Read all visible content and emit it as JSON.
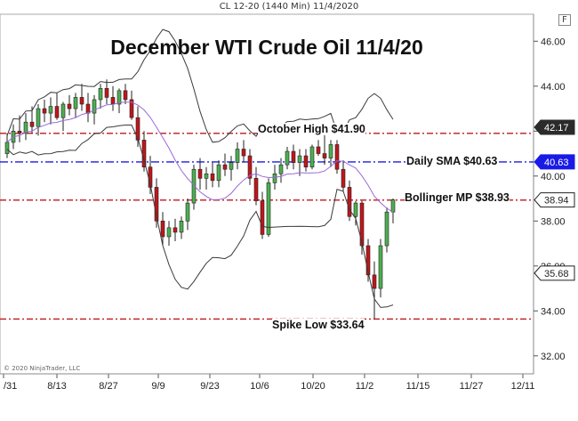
{
  "header": {
    "instrument": "CL 12-20 (1440 Min)  11/4/2020",
    "f_label": "F"
  },
  "copyright": "© 2020 NinjaTrader, LLC",
  "colors": {
    "up": "#4caf50",
    "down": "#c0161b",
    "hline_red": "#c0161b",
    "hline_blue": "#1a1ae6",
    "band": "#3a3a3a",
    "sma": "#9a6ad6"
  },
  "chart_data": {
    "type": "candlestick",
    "title": "December WTI Crude Oil 11/4/20",
    "x_ticks": [
      "/31",
      "8/13",
      "8/27",
      "9/9",
      "9/23",
      "10/6",
      "10/20",
      "11/2",
      "11/15",
      "11/27",
      "12/11"
    ],
    "y_ticks": [
      "46.00",
      "44.00",
      "42.00",
      "40.00",
      "38.00",
      "36.00",
      "34.00",
      "32.00"
    ],
    "ylim": [
      31.2,
      47.2
    ],
    "grid": false,
    "levels": [
      {
        "label": "October High $41.90",
        "value": 41.9,
        "color": "red"
      },
      {
        "label": "Daily SMA $40.63",
        "value": 40.63,
        "color": "blue"
      },
      {
        "label": "Bollinger MP $38.93",
        "value": 38.93,
        "color": "red"
      },
      {
        "label": "Spike Low $33.64",
        "value": 33.64,
        "color": "red"
      }
    ],
    "price_labels": [
      {
        "text": "42.17",
        "value": 42.17,
        "style": "dark"
      },
      {
        "text": "40.63",
        "value": 40.63,
        "style": "blue"
      },
      {
        "text": "38.94",
        "value": 38.94,
        "style": "outline"
      },
      {
        "text": "35.68",
        "value": 35.68,
        "style": "outline"
      }
    ],
    "candles": [
      [
        41.0,
        41.9,
        40.8,
        41.5
      ],
      [
        41.5,
        42.3,
        41.2,
        42.0
      ],
      [
        42.0,
        42.7,
        41.5,
        41.9
      ],
      [
        41.9,
        42.8,
        41.6,
        42.4
      ],
      [
        42.4,
        43.1,
        41.9,
        42.2
      ],
      [
        42.2,
        43.2,
        41.8,
        43.0
      ],
      [
        43.0,
        43.4,
        42.4,
        42.8
      ],
      [
        42.8,
        43.5,
        42.3,
        43.1
      ],
      [
        43.1,
        43.7,
        42.5,
        42.6
      ],
      [
        42.6,
        43.3,
        42.0,
        43.2
      ],
      [
        43.2,
        43.6,
        42.7,
        43.0
      ],
      [
        43.0,
        43.7,
        42.6,
        43.5
      ],
      [
        43.5,
        44.1,
        42.9,
        43.2
      ],
      [
        43.2,
        43.7,
        42.4,
        42.8
      ],
      [
        42.8,
        43.6,
        42.3,
        43.4
      ],
      [
        43.4,
        44.1,
        43.0,
        43.9
      ],
      [
        43.9,
        44.3,
        43.2,
        43.5
      ],
      [
        43.5,
        44.0,
        42.9,
        43.2
      ],
      [
        43.2,
        43.9,
        42.8,
        43.8
      ],
      [
        43.8,
        44.1,
        43.2,
        43.4
      ],
      [
        43.4,
        43.8,
        42.5,
        42.6
      ],
      [
        42.6,
        43.1,
        41.3,
        41.6
      ],
      [
        41.6,
        42.0,
        40.2,
        40.4
      ],
      [
        40.4,
        40.9,
        39.2,
        39.5
      ],
      [
        39.5,
        39.9,
        37.7,
        38.0
      ],
      [
        38.0,
        38.4,
        36.9,
        37.3
      ],
      [
        37.3,
        38.0,
        36.9,
        37.7
      ],
      [
        37.7,
        38.1,
        37.1,
        37.5
      ],
      [
        37.5,
        38.2,
        37.2,
        38.0
      ],
      [
        38.0,
        39.0,
        37.6,
        38.8
      ],
      [
        38.8,
        40.5,
        38.5,
        40.3
      ],
      [
        40.3,
        40.8,
        39.4,
        39.9
      ],
      [
        39.9,
        40.4,
        39.4,
        40.1
      ],
      [
        40.1,
        40.6,
        39.5,
        39.8
      ],
      [
        39.8,
        40.7,
        39.5,
        40.5
      ],
      [
        40.5,
        41.0,
        40.0,
        40.3
      ],
      [
        40.3,
        40.9,
        39.8,
        40.6
      ],
      [
        40.6,
        41.5,
        40.3,
        41.2
      ],
      [
        41.2,
        41.6,
        40.6,
        40.9
      ],
      [
        40.9,
        41.2,
        39.6,
        39.9
      ],
      [
        39.9,
        40.4,
        38.7,
        38.9
      ],
      [
        38.9,
        39.3,
        37.2,
        37.4
      ],
      [
        37.4,
        39.9,
        37.3,
        39.7
      ],
      [
        39.7,
        40.5,
        39.4,
        40.1
      ],
      [
        40.1,
        40.8,
        39.7,
        40.5
      ],
      [
        40.5,
        41.3,
        40.3,
        41.1
      ],
      [
        41.1,
        41.4,
        40.3,
        40.6
      ],
      [
        40.6,
        41.2,
        40.0,
        40.9
      ],
      [
        40.9,
        41.2,
        40.2,
        40.4
      ],
      [
        40.4,
        41.4,
        40.3,
        41.3
      ],
      [
        41.3,
        41.6,
        40.9,
        41.0
      ],
      [
        41.0,
        41.9,
        40.5,
        40.8
      ],
      [
        40.8,
        41.6,
        40.4,
        41.4
      ],
      [
        41.4,
        41.6,
        40.1,
        40.3
      ],
      [
        40.3,
        40.7,
        39.3,
        39.5
      ],
      [
        39.5,
        39.8,
        38.0,
        38.2
      ],
      [
        38.2,
        38.9,
        37.8,
        38.8
      ],
      [
        38.8,
        38.9,
        36.5,
        36.9
      ],
      [
        36.9,
        37.2,
        35.3,
        35.6
      ],
      [
        35.6,
        36.2,
        33.64,
        35.0
      ],
      [
        35.0,
        37.2,
        34.6,
        36.9
      ],
      [
        36.9,
        38.6,
        36.6,
        38.4
      ],
      [
        38.4,
        39.0,
        37.9,
        38.94
      ]
    ]
  }
}
